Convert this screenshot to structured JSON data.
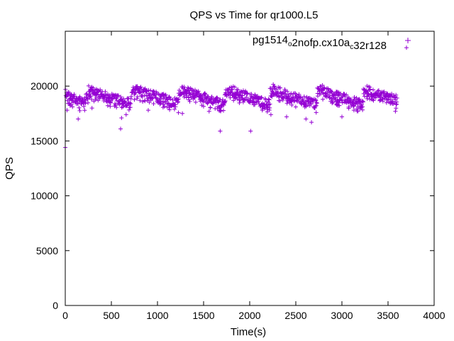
{
  "chart_data": {
    "type": "scatter",
    "title": "QPS vs Time for qr1000.L5",
    "xlabel": "Time(s)",
    "ylabel": "QPS",
    "xlim": [
      0,
      4000
    ],
    "ylim": [
      0,
      25000
    ],
    "xticks": [
      0,
      500,
      1000,
      1500,
      2000,
      2500,
      3000,
      3500,
      4000
    ],
    "yticks": [
      0,
      5000,
      10000,
      15000,
      20000
    ],
    "grid": false,
    "legend_position": "top-right",
    "series": [
      {
        "name_parts": [
          {
            "text": "pg1514",
            "sub": false
          },
          {
            "text": "o",
            "sub": true
          },
          {
            "text": "2nofp.cx10a",
            "sub": false
          },
          {
            "text": "c",
            "sub": true
          },
          {
            "text": "32r128",
            "sub": false
          }
        ],
        "color": "#9400d3",
        "marker": "plus",
        "segments": [
          {
            "t0": 0,
            "t1": 20,
            "y0": 19300,
            "y1": 19100
          },
          {
            "t0": 20,
            "t1": 210,
            "y0": 19100,
            "y1": 18400
          },
          {
            "t0": 210,
            "t1": 250,
            "y0": 18600,
            "y1": 19300
          },
          {
            "t0": 250,
            "t1": 710,
            "y0": 19600,
            "y1": 18400
          },
          {
            "t0": 710,
            "t1": 770,
            "y0": 19200,
            "y1": 19800
          },
          {
            "t0": 770,
            "t1": 1230,
            "y0": 19600,
            "y1": 18400
          },
          {
            "t0": 1230,
            "t1": 1290,
            "y0": 19300,
            "y1": 19700
          },
          {
            "t0": 1290,
            "t1": 1730,
            "y0": 19600,
            "y1": 18300
          },
          {
            "t0": 1730,
            "t1": 1790,
            "y0": 19300,
            "y1": 19700
          },
          {
            "t0": 1790,
            "t1": 2220,
            "y0": 19600,
            "y1": 18300
          },
          {
            "t0": 2220,
            "t1": 2260,
            "y0": 19400,
            "y1": 19800
          },
          {
            "t0": 2260,
            "t1": 2730,
            "y0": 19600,
            "y1": 18300
          },
          {
            "t0": 2730,
            "t1": 2790,
            "y0": 19400,
            "y1": 19700
          },
          {
            "t0": 2790,
            "t1": 3230,
            "y0": 19500,
            "y1": 18300
          },
          {
            "t0": 3230,
            "t1": 3290,
            "y0": 19300,
            "y1": 19700
          },
          {
            "t0": 3290,
            "t1": 3600,
            "y0": 19500,
            "y1": 18700
          }
        ],
        "spread": 450,
        "step": 4,
        "outliers": [
          {
            "x": 0,
            "y": 14400
          },
          {
            "x": 20,
            "y": 17800
          },
          {
            "x": 140,
            "y": 17000
          },
          {
            "x": 290,
            "y": 18000
          },
          {
            "x": 600,
            "y": 16100
          },
          {
            "x": 610,
            "y": 17100
          },
          {
            "x": 660,
            "y": 17400
          },
          {
            "x": 900,
            "y": 17800
          },
          {
            "x": 1270,
            "y": 17500
          },
          {
            "x": 1560,
            "y": 17700
          },
          {
            "x": 1680,
            "y": 15900
          },
          {
            "x": 2010,
            "y": 15900
          },
          {
            "x": 2230,
            "y": 17400
          },
          {
            "x": 2400,
            "y": 17200
          },
          {
            "x": 2670,
            "y": 16700
          },
          {
            "x": 2610,
            "y": 17000
          },
          {
            "x": 3000,
            "y": 17200
          },
          {
            "x": 3130,
            "y": 17800
          },
          {
            "x": 3580,
            "y": 17700
          },
          {
            "x": 3700,
            "y": 23500
          }
        ]
      }
    ]
  }
}
